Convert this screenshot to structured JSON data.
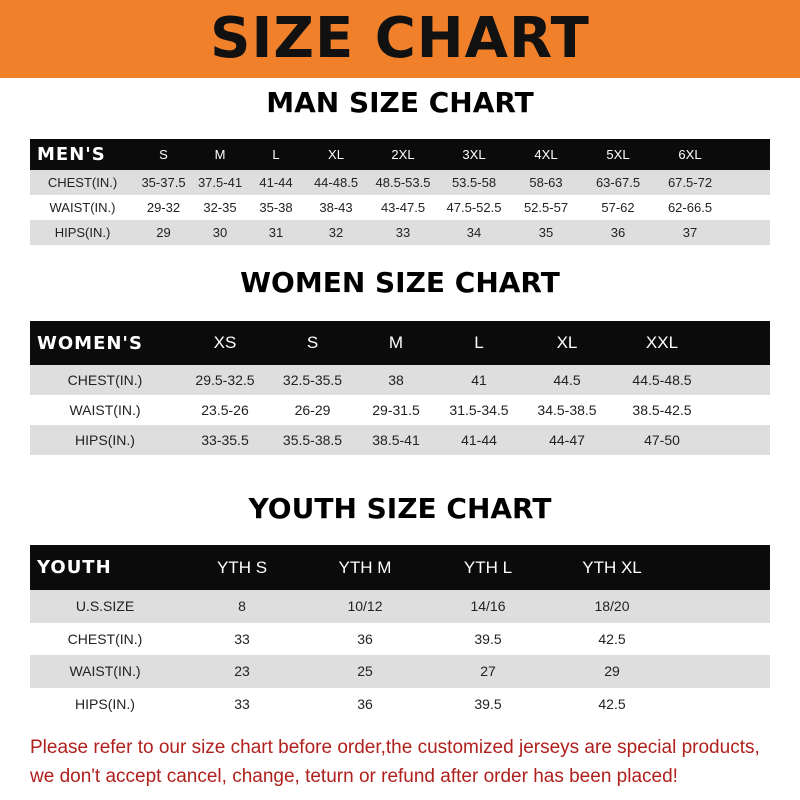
{
  "title": "SIZE CHART",
  "colors": {
    "banner": "#f0802a",
    "header_row": "#0b0b0b",
    "stripe": "#dedede",
    "note": "#b0201c"
  },
  "men": {
    "title": "MAN SIZE CHART",
    "header": [
      "MEN'S",
      "S",
      "M",
      "L",
      "XL",
      "2XL",
      "3XL",
      "4XL",
      "5XL",
      "6XL"
    ],
    "rows": [
      [
        "CHEST(IN.)",
        "35-37.5",
        "37.5-41",
        "41-44",
        "44-48.5",
        "48.5-53.5",
        "53.5-58",
        "58-63",
        "63-67.5",
        "67.5-72"
      ],
      [
        "WAIST(IN.)",
        "29-32",
        "32-35",
        "35-38",
        "38-43",
        "43-47.5",
        "47.5-52.5",
        "52.5-57",
        "57-62",
        "62-66.5"
      ],
      [
        "HIPS(IN.)",
        "29",
        "30",
        "31",
        "32",
        "33",
        "34",
        "35",
        "36",
        "37"
      ]
    ]
  },
  "women": {
    "title": "WOMEN SIZE CHART",
    "header": [
      "WOMEN'S",
      "XS",
      "S",
      "M",
      "L",
      "XL",
      "XXL"
    ],
    "rows": [
      [
        "CHEST(IN.)",
        "29.5-32.5",
        "32.5-35.5",
        "38",
        "41",
        "44.5",
        "44.5-48.5"
      ],
      [
        "WAIST(IN.)",
        "23.5-26",
        "26-29",
        "29-31.5",
        "31.5-34.5",
        "34.5-38.5",
        "38.5-42.5"
      ],
      [
        "HIPS(IN.)",
        "33-35.5",
        "35.5-38.5",
        "38.5-41",
        "41-44",
        "44-47",
        "47-50"
      ]
    ]
  },
  "youth": {
    "title": "YOUTH SIZE CHART",
    "header": [
      "YOUTH",
      "YTH S",
      "YTH M",
      "YTH L",
      "YTH XL"
    ],
    "rows": [
      [
        "U.S.SIZE",
        "8",
        "10/12",
        "14/16",
        "18/20"
      ],
      [
        "CHEST(IN.)",
        "33",
        "36",
        "39.5",
        "42.5"
      ],
      [
        "WAIST(IN.)",
        "23",
        "25",
        "27",
        "29"
      ],
      [
        "HIPS(IN.)",
        "33",
        "36",
        "39.5",
        "42.5"
      ]
    ]
  },
  "note": {
    "line1": "Please refer to our size chart before order,the customized jerseys are special products,",
    "line2": "we don't accept cancel, change, teturn or refund after order has been placed!"
  }
}
